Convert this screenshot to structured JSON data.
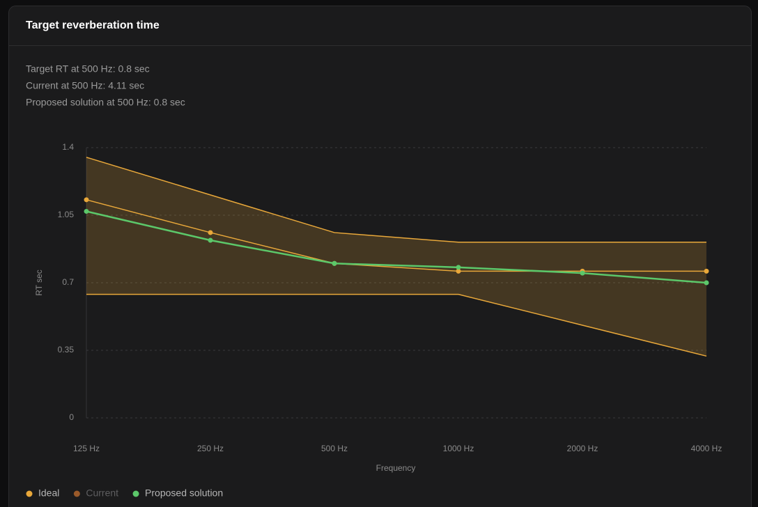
{
  "card_title": "Target reverberation time",
  "info": [
    "Target RT at 500 Hz: 0.8 sec",
    "Current at 500 Hz: 4.11 sec",
    "Proposed solution at 500 Hz: 0.8 sec"
  ],
  "chart_data": {
    "type": "line",
    "x_label": "Frequency",
    "y_label": "RT sec",
    "categories": [
      "125 Hz",
      "250 Hz",
      "500 Hz",
      "1000 Hz",
      "2000 Hz",
      "4000 Hz"
    ],
    "ylim": [
      0,
      1.4
    ],
    "yticks": [
      0,
      0.35,
      0.7,
      1.05,
      1.4
    ],
    "grid": true,
    "band": {
      "color": "#e9a83a",
      "upper": [
        1.35,
        1.155,
        0.96,
        0.91,
        0.91,
        0.91
      ],
      "lower": [
        0.64,
        0.64,
        0.64,
        0.64,
        0.48,
        0.32
      ]
    },
    "series": [
      {
        "name": "Ideal",
        "color": "#e9a83a",
        "values": [
          1.13,
          0.96,
          0.8,
          0.76,
          0.76,
          0.76
        ]
      },
      {
        "name": "Current",
        "color": "#9a5a2a",
        "hidden": true,
        "values": [
          null,
          null,
          null,
          null,
          null,
          null
        ]
      },
      {
        "name": "Proposed solution",
        "color": "#5cc86a",
        "values": [
          1.07,
          0.92,
          0.8,
          0.78,
          0.75,
          0.7
        ]
      }
    ]
  }
}
